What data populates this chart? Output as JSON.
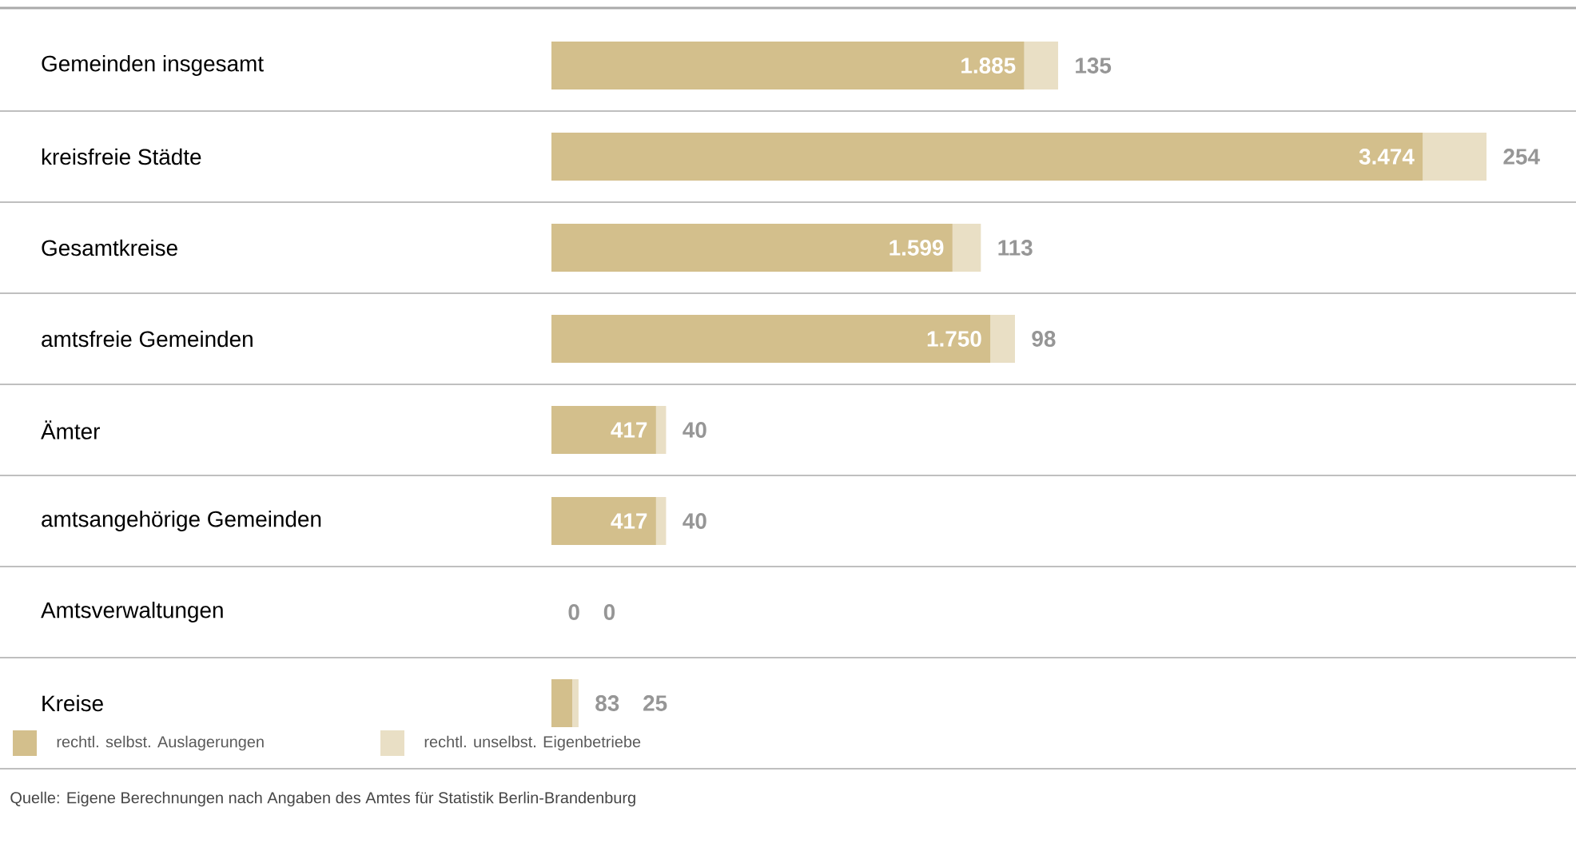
{
  "chart_data": {
    "type": "bar",
    "orientation": "horizontal",
    "stacked": true,
    "categories": [
      "Gemeinden insgesamt",
      "kreisfreie Städte",
      "Gesamtkreise",
      "amtsfreie Gemeinden",
      "Ämter",
      "amtsangehörige Gemeinden",
      "Amtsverwaltungen",
      "Kreise"
    ],
    "series": [
      {
        "name": "rechtl. selbst. Auslagerungen",
        "color": "#d3bf8c",
        "values": [
          1885,
          3474,
          1599,
          1750,
          417,
          417,
          0,
          83
        ],
        "value_labels": [
          "1.885",
          "3.474",
          "1.599",
          "1.750",
          "417",
          "417",
          "0",
          "83"
        ]
      },
      {
        "name": "rechtl. unselbst. Eigenbetriebe",
        "color": "#e9dfc5",
        "values": [
          135,
          254,
          113,
          98,
          40,
          40,
          0,
          25
        ],
        "value_labels": [
          "135",
          "254",
          "113",
          "98",
          "40",
          "40",
          "0",
          "25"
        ]
      }
    ],
    "legend": "bottom left",
    "annotations": [
      "Quelle:  Eigene Berechnungen nach Angaben des Amtes für Statistik Berlin-Brandenburg"
    ]
  }
}
